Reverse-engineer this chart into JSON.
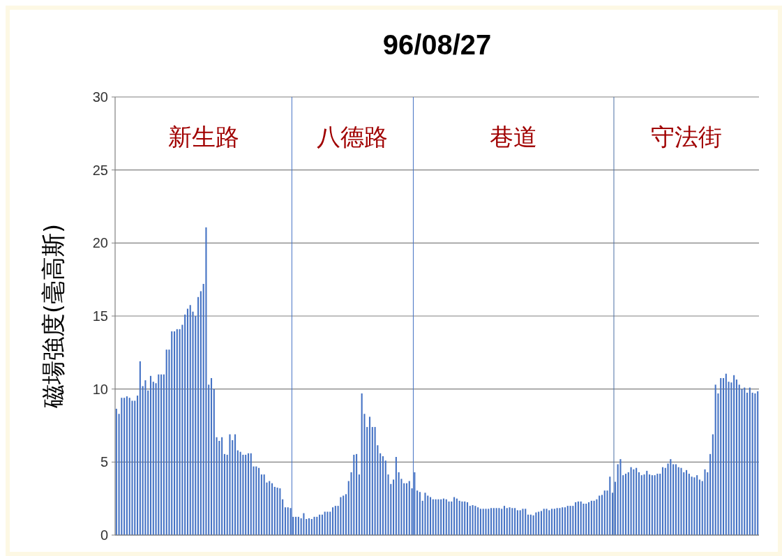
{
  "chart_data": {
    "type": "bar",
    "title": "96/08/27",
    "ylabel": "磁場強度(毫高斯)",
    "categories": [
      null,
      null,
      null,
      null,
      null,
      null,
      null,
      null,
      null,
      null,
      null,
      null,
      null,
      null,
      null,
      null,
      null,
      null,
      null,
      null,
      null,
      null,
      null,
      null,
      null,
      null,
      null,
      null,
      null,
      null,
      null,
      null,
      null,
      null,
      null,
      null,
      null,
      null,
      null,
      null,
      null,
      null,
      null,
      null,
      null,
      null,
      null,
      null,
      null,
      null,
      null,
      null,
      null,
      null,
      null,
      null,
      null,
      null,
      null,
      null,
      null,
      null,
      null,
      null,
      null,
      null,
      null,
      null,
      null,
      null,
      null,
      null,
      null,
      null,
      null,
      null,
      null,
      null,
      null,
      null,
      null,
      null,
      null,
      null,
      null,
      null,
      null,
      null,
      null,
      null,
      null,
      null,
      null,
      null,
      null,
      null,
      null,
      null,
      null,
      null,
      null,
      null,
      null,
      null,
      null,
      null,
      null,
      null,
      null,
      null,
      null,
      null,
      null,
      null,
      null,
      null,
      null,
      null,
      null,
      null,
      null,
      null,
      null,
      null,
      null,
      null,
      null,
      null,
      null,
      null,
      null,
      null,
      null,
      null,
      null,
      null,
      null,
      null,
      null,
      null,
      null,
      null,
      null,
      null,
      null,
      null,
      null,
      null,
      null,
      null,
      null,
      null,
      null,
      null,
      null,
      null,
      null,
      null,
      null,
      null,
      null,
      null,
      null,
      null,
      null,
      null,
      null,
      null,
      null,
      null,
      null,
      null,
      null,
      null,
      null,
      null,
      null,
      null,
      null,
      null,
      null,
      null,
      null,
      null,
      null,
      null,
      null,
      null,
      null,
      null,
      null,
      null,
      null,
      null,
      null,
      null,
      null,
      null,
      null,
      null,
      null,
      null,
      null,
      null,
      null,
      null,
      null,
      null,
      null,
      null,
      null,
      null,
      null,
      null,
      null,
      null,
      null,
      null,
      null,
      null,
      null,
      null,
      null,
      null,
      null,
      null,
      null,
      null,
      null,
      null,
      null,
      null,
      null,
      null,
      null,
      null,
      null,
      null,
      null,
      null,
      null,
      null,
      null,
      null
    ],
    "values": [
      8.65,
      8.3,
      9.4,
      9.4,
      9.5,
      9.4,
      9.2,
      9.2,
      9.55,
      11.9,
      10.2,
      10.6,
      9.9,
      10.9,
      10.5,
      10.4,
      11,
      11,
      11,
      12.7,
      12.7,
      13.95,
      13.95,
      14.1,
      14.1,
      14.4,
      15.1,
      15.5,
      15.75,
      15.3,
      15,
      16.3,
      16.7,
      17.2,
      21.07,
      10.3,
      10.75,
      10,
      6.7,
      6.45,
      6.7,
      5.55,
      5.5,
      6.9,
      6.5,
      6.9,
      5.8,
      5.7,
      5.5,
      5.5,
      5.6,
      5.6,
      4.7,
      4.7,
      4.6,
      4.15,
      4.15,
      3.6,
      3.7,
      3.55,
      3.3,
      3.25,
      3.2,
      2.45,
      1.9,
      1.9,
      1.85,
      1.25,
      1.25,
      1.25,
      1.15,
      1.5,
      1.1,
      1.15,
      1.1,
      1.25,
      1.25,
      1.4,
      1.4,
      1.6,
      1.6,
      1.6,
      1.9,
      2,
      2,
      2.6,
      2.7,
      2.8,
      3.7,
      4.3,
      5.5,
      5.55,
      4.15,
      9.7,
      8.3,
      7.4,
      8.1,
      7.4,
      7.4,
      6.15,
      5.6,
      5.4,
      5.1,
      4.15,
      3.5,
      3.8,
      5.35,
      4.3,
      3.85,
      3.55,
      3.55,
      3.7,
      3.2,
      4.3,
      3.05,
      2.95,
      2.35,
      2.9,
      2.7,
      2.6,
      2.45,
      2.45,
      2.45,
      2.45,
      2.5,
      2.45,
      2.3,
      2.3,
      2.6,
      2.5,
      2.35,
      2.3,
      2.3,
      2.25,
      2,
      2.05,
      2,
      1.9,
      1.8,
      1.8,
      1.8,
      1.8,
      1.85,
      1.85,
      1.85,
      1.85,
      1.8,
      2,
      1.85,
      1.9,
      1.85,
      1.85,
      1.7,
      1.7,
      1.8,
      1.8,
      1.4,
      1.4,
      1.35,
      1.55,
      1.6,
      1.65,
      1.8,
      1.8,
      1.7,
      1.8,
      1.8,
      1.85,
      1.85,
      1.9,
      1.9,
      2,
      2,
      2,
      2.25,
      2.3,
      2.3,
      2.15,
      2.15,
      2.25,
      2.35,
      2.35,
      2.45,
      2.7,
      2.75,
      3.05,
      3.05,
      4,
      2.9,
      3.65,
      4.85,
      5.2,
      4.1,
      4.2,
      4.3,
      4.65,
      4.5,
      4.6,
      4.3,
      4.1,
      4.15,
      4.4,
      4.15,
      4.1,
      4.1,
      4.2,
      4.2,
      4.65,
      4.6,
      4.9,
      5.2,
      4.85,
      4.85,
      4.65,
      4.6,
      4.3,
      4.45,
      4.2,
      4,
      3.95,
      4.1,
      3.8,
      3.7,
      4.5,
      4.3,
      5.55,
      6.9,
      10.3,
      9.7,
      10.75,
      10.75,
      11.05,
      10.5,
      10.45,
      10.95,
      10.65,
      10.3,
      10,
      10.1,
      9.75,
      10.1,
      9.75,
      9.7,
      9.85
    ],
    "color": "#4472c4",
    "ylim": [
      0,
      30
    ],
    "yticks": [
      0,
      5,
      10,
      15,
      20,
      25,
      30
    ],
    "grid": "y",
    "annotations": [
      "新生路",
      "八德路",
      "巷道",
      "守法街"
    ]
  }
}
